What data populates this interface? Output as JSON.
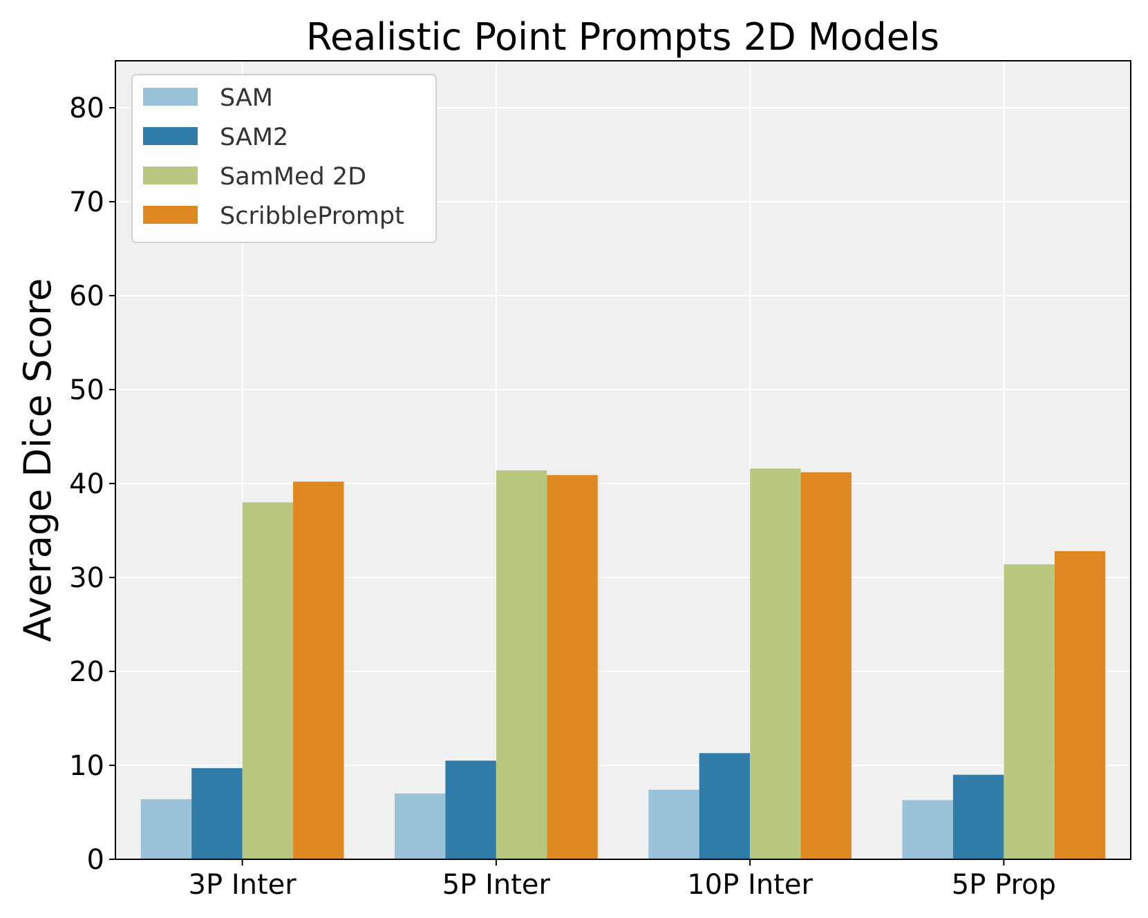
{
  "chart_data": {
    "type": "bar",
    "title": "Realistic Point Prompts 2D Models",
    "xlabel": "",
    "ylabel": "Average Dice Score",
    "categories": [
      "3P Inter",
      "5P Inter",
      "10P Inter",
      "5P Prop"
    ],
    "ylim": [
      0,
      85
    ],
    "yticks": [
      0,
      10,
      20,
      30,
      40,
      50,
      60,
      70,
      80
    ],
    "grid": true,
    "legend_position": "top-left",
    "series": [
      {
        "name": "SAM",
        "color": "#9ac2d9",
        "values": [
          6.4,
          7.0,
          7.4,
          6.3
        ]
      },
      {
        "name": "SAM2",
        "color": "#2f7ca8",
        "values": [
          9.7,
          10.5,
          11.3,
          9.0
        ]
      },
      {
        "name": "SamMed 2D",
        "color": "#b8c880",
        "values": [
          38.0,
          41.4,
          41.6,
          31.4
        ]
      },
      {
        "name": "ScribblePrompt",
        "color": "#de8821",
        "values": [
          40.2,
          40.9,
          41.2,
          32.8
        ]
      }
    ],
    "background_color": "#f0f0f0"
  }
}
